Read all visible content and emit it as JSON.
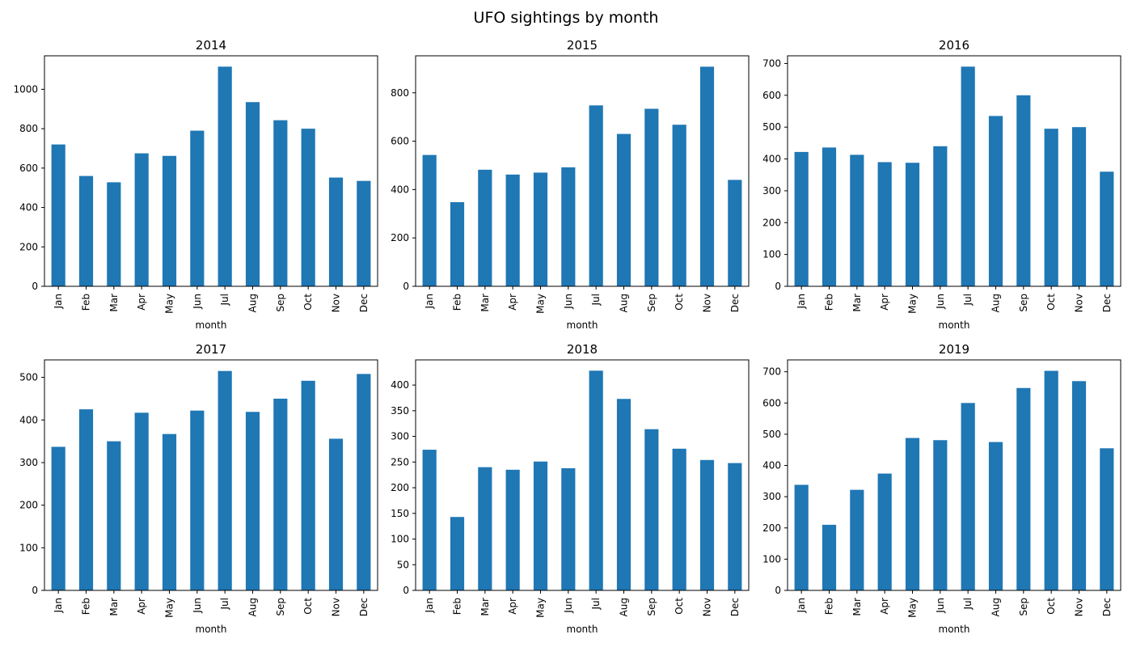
{
  "figure": {
    "title": "UFO sightings by month"
  },
  "chart_data": [
    {
      "type": "bar",
      "title": "2014",
      "xlabel": "month",
      "ylabel": "",
      "categories": [
        "Jan",
        "Feb",
        "Mar",
        "Apr",
        "May",
        "Jun",
        "Jul",
        "Aug",
        "Sep",
        "Oct",
        "Nov",
        "Dec"
      ],
      "values": [
        720,
        560,
        528,
        675,
        662,
        790,
        1115,
        935,
        843,
        800,
        552,
        535
      ],
      "ylim": [
        0,
        1170
      ],
      "yticks": [
        0,
        200,
        400,
        600,
        800,
        1000
      ],
      "color": "#1f77b4"
    },
    {
      "type": "bar",
      "title": "2015",
      "xlabel": "month",
      "ylabel": "",
      "categories": [
        "Jan",
        "Feb",
        "Mar",
        "Apr",
        "May",
        "Jun",
        "Jul",
        "Aug",
        "Sep",
        "Oct",
        "Nov",
        "Dec"
      ],
      "values": [
        543,
        348,
        482,
        462,
        470,
        492,
        748,
        630,
        734,
        668,
        908,
        440
      ],
      "ylim": [
        0,
        953
      ],
      "yticks": [
        0,
        200,
        400,
        600,
        800
      ],
      "color": "#1f77b4"
    },
    {
      "type": "bar",
      "title": "2016",
      "xlabel": "month",
      "ylabel": "",
      "categories": [
        "Jan",
        "Feb",
        "Mar",
        "Apr",
        "May",
        "Jun",
        "Jul",
        "Aug",
        "Sep",
        "Oct",
        "Nov",
        "Dec"
      ],
      "values": [
        422,
        436,
        413,
        390,
        388,
        440,
        690,
        535,
        600,
        495,
        500,
        360
      ],
      "ylim": [
        0,
        724
      ],
      "yticks": [
        0,
        100,
        200,
        300,
        400,
        500,
        600,
        700
      ],
      "color": "#1f77b4"
    },
    {
      "type": "bar",
      "title": "2017",
      "xlabel": "month",
      "ylabel": "",
      "categories": [
        "Jan",
        "Feb",
        "Mar",
        "Apr",
        "May",
        "Jun",
        "Jul",
        "Aug",
        "Sep",
        "Oct",
        "Nov",
        "Dec"
      ],
      "values": [
        337,
        425,
        350,
        417,
        367,
        422,
        515,
        419,
        450,
        492,
        356,
        508
      ],
      "ylim": [
        0,
        541
      ],
      "yticks": [
        0,
        100,
        200,
        300,
        400,
        500
      ],
      "color": "#1f77b4"
    },
    {
      "type": "bar",
      "title": "2018",
      "xlabel": "month",
      "ylabel": "",
      "categories": [
        "Jan",
        "Feb",
        "Mar",
        "Apr",
        "May",
        "Jun",
        "Jul",
        "Aug",
        "Sep",
        "Oct",
        "Nov",
        "Dec"
      ],
      "values": [
        274,
        143,
        240,
        235,
        251,
        238,
        428,
        373,
        314,
        276,
        254,
        248
      ],
      "ylim": [
        0,
        449
      ],
      "yticks": [
        0,
        50,
        100,
        150,
        200,
        250,
        300,
        350,
        400
      ],
      "color": "#1f77b4"
    },
    {
      "type": "bar",
      "title": "2019",
      "xlabel": "month",
      "ylabel": "",
      "categories": [
        "Jan",
        "Feb",
        "Mar",
        "Apr",
        "May",
        "Jun",
        "Jul",
        "Aug",
        "Sep",
        "Oct",
        "Nov",
        "Dec"
      ],
      "values": [
        338,
        210,
        322,
        374,
        488,
        481,
        600,
        475,
        648,
        703,
        670,
        455
      ],
      "ylim": [
        0,
        738
      ],
      "yticks": [
        0,
        100,
        200,
        300,
        400,
        500,
        600,
        700
      ],
      "color": "#1f77b4"
    }
  ]
}
